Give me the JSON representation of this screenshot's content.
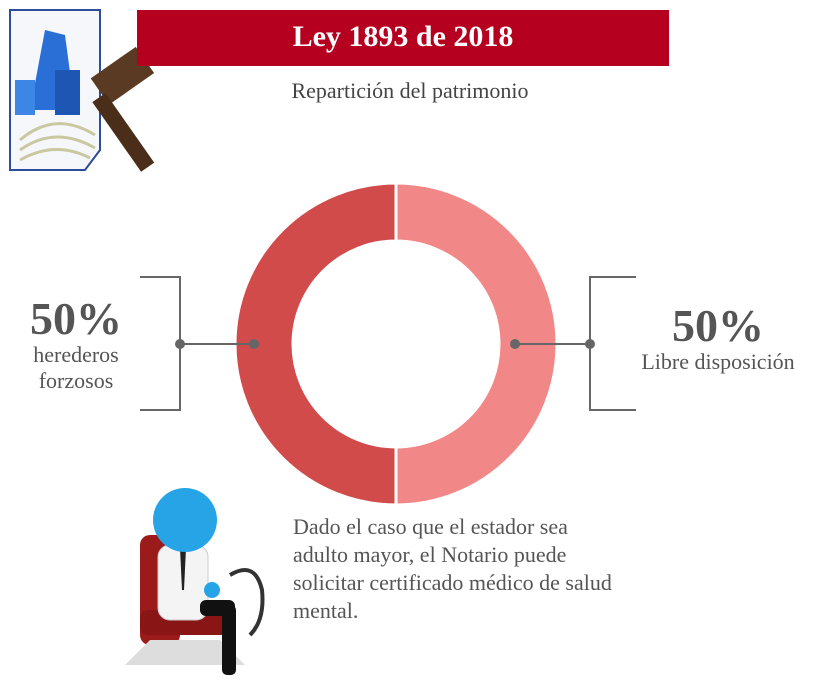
{
  "chart_data": {
    "type": "pie",
    "title": "Ley 1893 de 2018",
    "subtitle": "Repartición del patrimonio",
    "categories": [
      "herederos forzosos",
      "Libre disposición"
    ],
    "values": [
      50,
      50
    ],
    "value_labels": [
      "50%",
      "50%"
    ],
    "colors": [
      "#d24b4b",
      "#f28787"
    ],
    "donut": true,
    "annotation": "Dado el caso que el estador sea adulto mayor, el Notario puede solicitar certificado médico de salud mental."
  }
}
